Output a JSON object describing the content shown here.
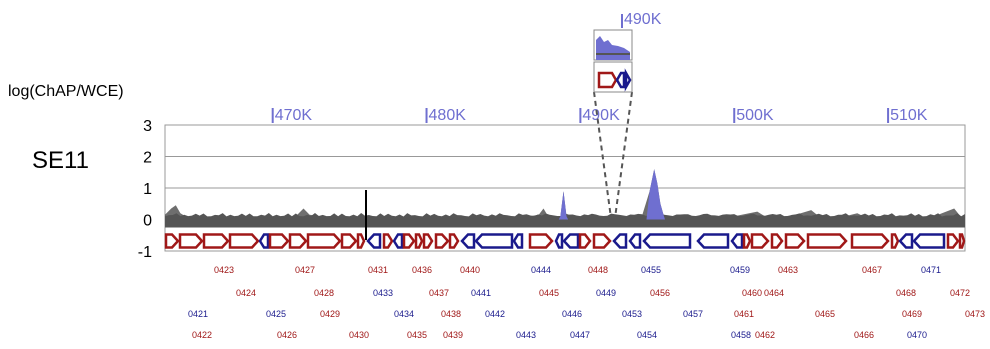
{
  "chart_data": {
    "type": "area",
    "ylabel": "log(ChAP/WCE)",
    "sample_label": "SE11",
    "ylim": [
      -1,
      3
    ],
    "yticks": [
      3,
      2,
      1,
      0,
      -1
    ],
    "x_range_kb": [
      463,
      515
    ],
    "position_ticks": [
      {
        "label": "470K",
        "value": 470
      },
      {
        "label": "480K",
        "value": 480
      },
      {
        "label": "490K",
        "value": 490
      },
      {
        "label": "500K",
        "value": 500
      },
      {
        "label": "510K",
        "value": 510
      }
    ],
    "series": [
      {
        "points": [
          [
            463.0,
            0.15
          ],
          [
            463.4,
            0.35
          ],
          [
            463.7,
            0.45
          ],
          [
            464.0,
            0.2
          ],
          [
            464.5,
            0.05
          ],
          [
            466.0,
            0.05
          ],
          [
            468.0,
            0.08
          ],
          [
            470.0,
            0.05
          ],
          [
            471.5,
            0.1
          ],
          [
            472.0,
            0.35
          ],
          [
            472.4,
            0.15
          ],
          [
            474.0,
            0.05
          ],
          [
            476.0,
            0.08
          ],
          [
            478.0,
            0.05
          ],
          [
            480.0,
            0.1
          ],
          [
            482.0,
            0.05
          ],
          [
            484.0,
            0.08
          ],
          [
            486.0,
            0.05
          ],
          [
            487.3,
            0.15
          ],
          [
            487.6,
            0.35
          ],
          [
            487.9,
            0.1
          ],
          [
            488.7,
            0.1
          ],
          [
            488.9,
            0.9
          ],
          [
            489.1,
            0.1
          ],
          [
            490.0,
            0.05
          ],
          [
            492.0,
            0.05
          ],
          [
            494.0,
            0.1
          ],
          [
            494.5,
            0.9
          ],
          [
            494.8,
            1.6
          ],
          [
            495.0,
            1.15
          ],
          [
            495.2,
            0.5
          ],
          [
            495.4,
            0.15
          ],
          [
            496.0,
            0.08
          ],
          [
            498.0,
            0.05
          ],
          [
            500.0,
            0.1
          ],
          [
            501.5,
            0.25
          ],
          [
            502.0,
            0.1
          ],
          [
            503.0,
            0.08
          ],
          [
            504.0,
            0.15
          ],
          [
            505.0,
            0.3
          ],
          [
            505.5,
            0.1
          ],
          [
            507.0,
            0.08
          ],
          [
            508.0,
            0.2
          ],
          [
            508.5,
            0.08
          ],
          [
            510.0,
            0.05
          ],
          [
            511.0,
            0.05
          ],
          [
            512.0,
            0.05
          ],
          [
            513.0,
            0.1
          ],
          [
            514.3,
            0.35
          ],
          [
            514.7,
            0.1
          ],
          [
            515.0,
            0.05
          ]
        ],
        "color": "#6f6fd0"
      }
    ]
  },
  "annotations": {
    "inset_pos_label": "490K"
  },
  "genes": {
    "row1": [
      {
        "label": "0423",
        "strand": "minus"
      },
      {
        "label": "0427",
        "strand": "minus"
      },
      {
        "label": "0431",
        "strand": "minus"
      },
      {
        "label": "0436",
        "strand": "minus"
      },
      {
        "label": "0440",
        "strand": "minus"
      },
      {
        "label": "0444",
        "strand": "plus"
      },
      {
        "label": "0448",
        "strand": "minus"
      },
      {
        "label": "0455",
        "strand": "plus"
      },
      {
        "label": "0459",
        "strand": "plus"
      },
      {
        "label": "0463",
        "strand": "minus"
      },
      {
        "label": "0467",
        "strand": "minus"
      },
      {
        "label": "0471",
        "strand": "plus"
      }
    ],
    "row2": [
      {
        "label": "0424",
        "strand": "minus"
      },
      {
        "label": "0428",
        "strand": "minus"
      },
      {
        "label": "0433",
        "strand": "plus"
      },
      {
        "label": "0437",
        "strand": "minus"
      },
      {
        "label": "0441",
        "strand": "plus"
      },
      {
        "label": "0445",
        "strand": "minus"
      },
      {
        "label": "0449",
        "strand": "plus"
      },
      {
        "label": "0456",
        "strand": "minus"
      },
      {
        "label": "0460",
        "strand": "minus"
      },
      {
        "label": "0464",
        "strand": "minus"
      },
      {
        "label": "0468",
        "strand": "minus"
      },
      {
        "label": "0472",
        "strand": "minus"
      }
    ],
    "row3": [
      {
        "label": "0421",
        "strand": "plus"
      },
      {
        "label": "0425",
        "strand": "plus"
      },
      {
        "label": "0429",
        "strand": "minus"
      },
      {
        "label": "0434",
        "strand": "plus"
      },
      {
        "label": "0438",
        "strand": "minus"
      },
      {
        "label": "0442",
        "strand": "plus"
      },
      {
        "label": "0446",
        "strand": "plus"
      },
      {
        "label": "0453",
        "strand": "plus"
      },
      {
        "label": "0457",
        "strand": "plus"
      },
      {
        "label": "0461",
        "strand": "minus"
      },
      {
        "label": "0465",
        "strand": "minus"
      },
      {
        "label": "0469",
        "strand": "minus"
      },
      {
        "label": "0473",
        "strand": "minus"
      }
    ],
    "row4": [
      {
        "label": "0422",
        "strand": "minus"
      },
      {
        "label": "0426",
        "strand": "minus"
      },
      {
        "label": "0430",
        "strand": "minus"
      },
      {
        "label": "0435",
        "strand": "minus"
      },
      {
        "label": "0439",
        "strand": "minus"
      },
      {
        "label": "0443",
        "strand": "plus"
      },
      {
        "label": "0447",
        "strand": "plus"
      },
      {
        "label": "0454",
        "strand": "plus"
      },
      {
        "label": "0458",
        "strand": "plus"
      },
      {
        "label": "0462",
        "strand": "minus"
      },
      {
        "label": "0466",
        "strand": "minus"
      },
      {
        "label": "0470",
        "strand": "plus"
      }
    ]
  },
  "colors": {
    "plus_strand": "#1a1a8c",
    "minus_strand": "#a01818",
    "signal_fill": "#6f6fd0",
    "background_fill": "#555555",
    "grid": "#999999"
  }
}
